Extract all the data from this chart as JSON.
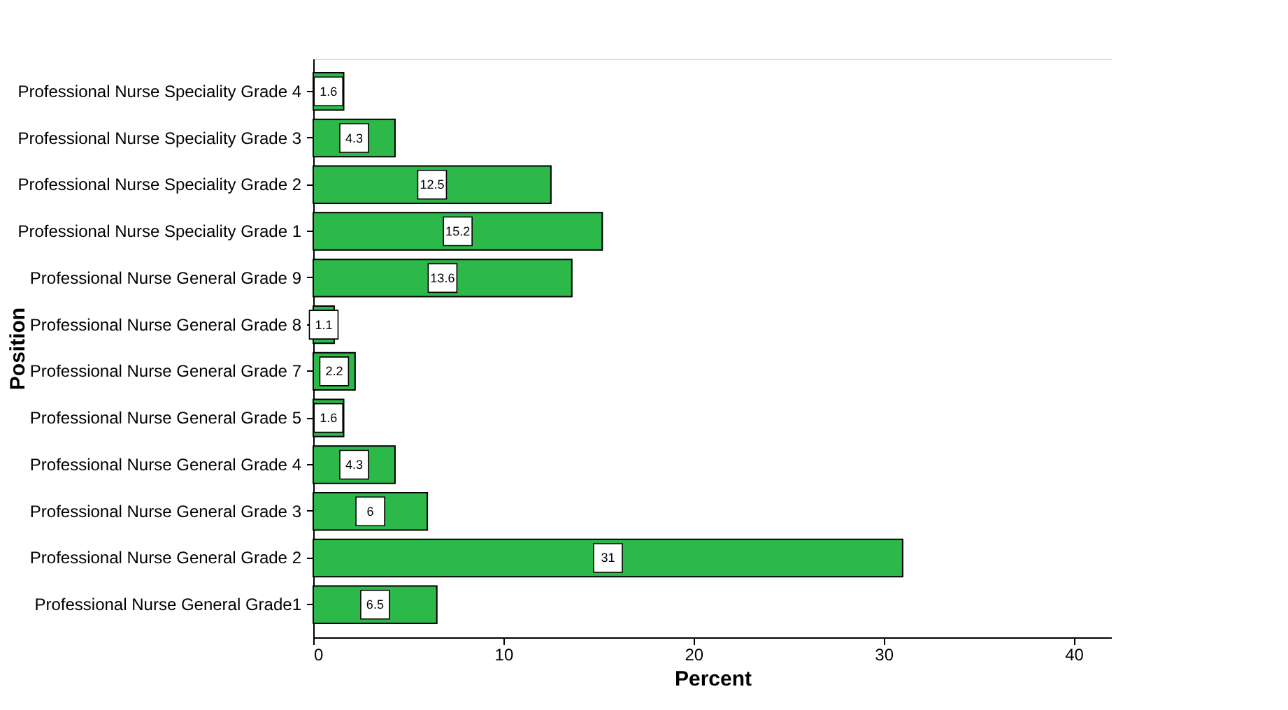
{
  "chart_data": {
    "type": "bar",
    "orientation": "horizontal",
    "xlabel": "Percent",
    "ylabel": "Position",
    "categories": [
      "Professional Nurse Speciality Grade 4",
      "Professional Nurse Speciality Grade 3",
      "Professional Nurse Speciality Grade 2",
      "Professional Nurse Speciality Grade 1",
      "Professional Nurse General Grade 9",
      "Professional Nurse General Grade 8",
      "Professional Nurse General Grade 7",
      "Professional Nurse General Grade 5",
      "Professional Nurse General Grade 4",
      "Professional Nurse General Grade 3",
      "Professional Nurse General Grade 2",
      "Professional Nurse General Grade1"
    ],
    "values": [
      1.6,
      4.3,
      12.5,
      15.2,
      13.6,
      1.1,
      2.2,
      1.6,
      4.3,
      6,
      31,
      6.5
    ],
    "color": "#2db84a",
    "xlim": [
      0,
      42
    ],
    "xticks": [
      0,
      10,
      20,
      30,
      40
    ],
    "grid": false,
    "data_labels": true
  }
}
